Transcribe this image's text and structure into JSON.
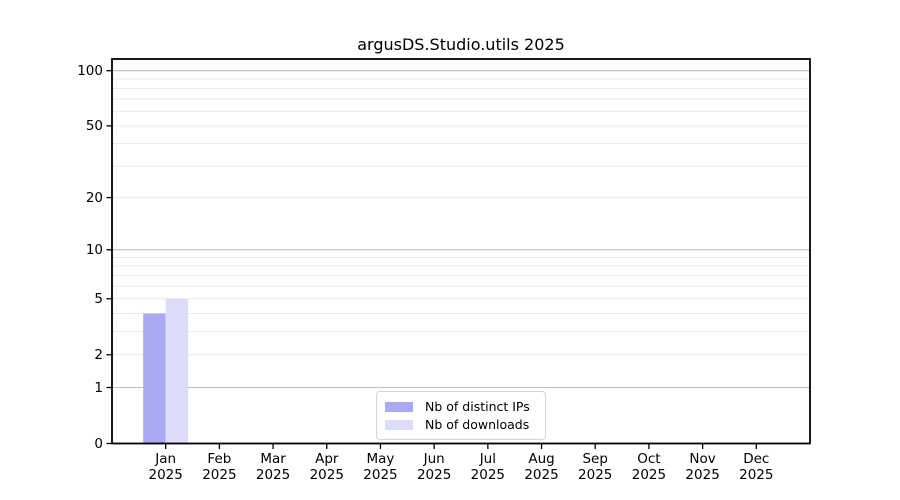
{
  "chart_data": {
    "type": "bar",
    "title": "argusDS.Studio.utils 2025",
    "categories": [
      {
        "month": "Jan",
        "year": "2025"
      },
      {
        "month": "Feb",
        "year": "2025"
      },
      {
        "month": "Mar",
        "year": "2025"
      },
      {
        "month": "Apr",
        "year": "2025"
      },
      {
        "month": "May",
        "year": "2025"
      },
      {
        "month": "Jun",
        "year": "2025"
      },
      {
        "month": "Jul",
        "year": "2025"
      },
      {
        "month": "Aug",
        "year": "2025"
      },
      {
        "month": "Sep",
        "year": "2025"
      },
      {
        "month": "Oct",
        "year": "2025"
      },
      {
        "month": "Nov",
        "year": "2025"
      },
      {
        "month": "Dec",
        "year": "2025"
      }
    ],
    "series": [
      {
        "name": "Nb of distinct IPs",
        "color": "#a9a9f4",
        "values": [
          4,
          0,
          0,
          0,
          0,
          0,
          0,
          0,
          0,
          0,
          0,
          0
        ]
      },
      {
        "name": "Nb of downloads",
        "color": "#dcdcf8",
        "values": [
          5,
          0,
          0,
          0,
          0,
          0,
          0,
          0,
          0,
          0,
          0,
          0
        ]
      }
    ],
    "y_axis": {
      "scale": "log1p",
      "ticks": [
        0,
        1,
        2,
        5,
        10,
        20,
        50,
        100
      ],
      "major_gridlines": [
        1,
        10,
        100
      ],
      "minor_gridlines": [
        2,
        3,
        4,
        5,
        6,
        7,
        8,
        9,
        20,
        30,
        40,
        50,
        60,
        70,
        80,
        90
      ],
      "ylim": [
        0,
        117
      ]
    },
    "xlabel": "",
    "ylabel": "",
    "grid": true,
    "legend_position": "lower-center",
    "colors": {
      "spine": "#000000",
      "major_grid": "#bdbdbd",
      "minor_grid": "#eaeaea",
      "tick": "#000000",
      "legend_border": "#d4d4d4"
    }
  }
}
